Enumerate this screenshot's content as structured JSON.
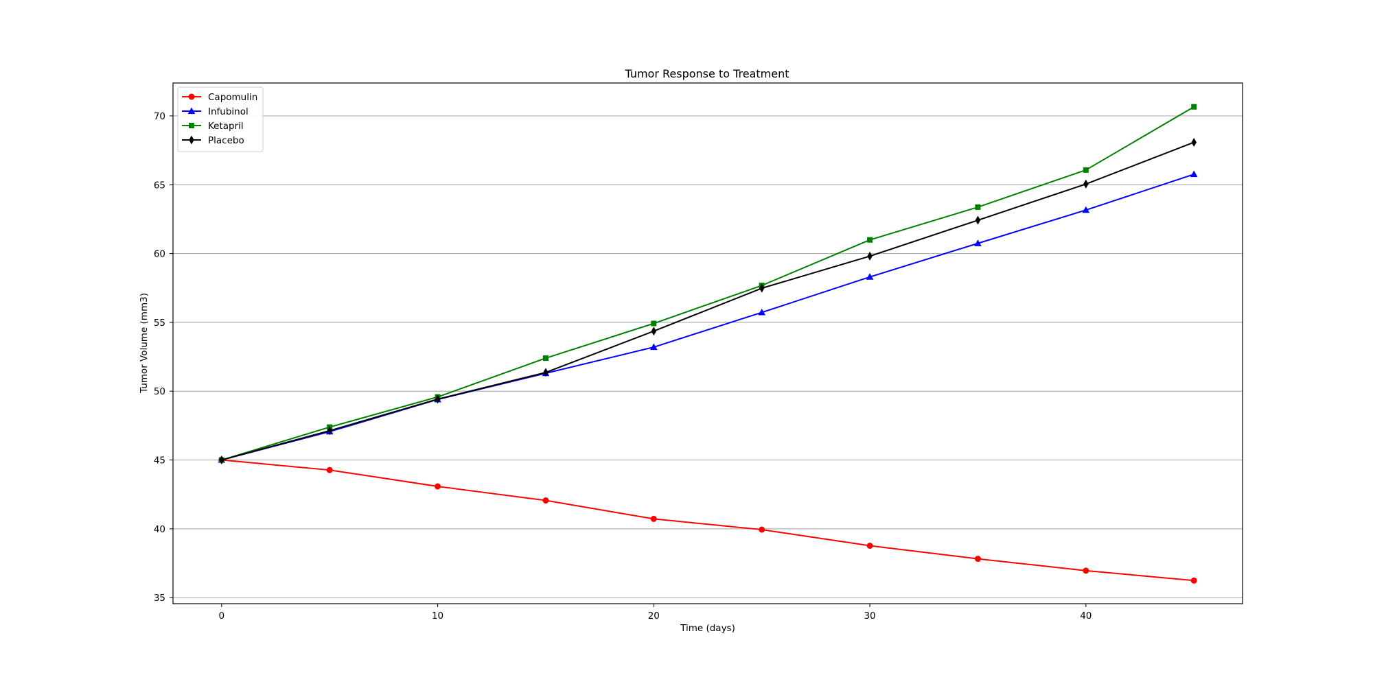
{
  "chart_data": {
    "type": "line",
    "title": "Tumor Response to Treatment",
    "xlabel": "Time (days)",
    "ylabel": "Tumor Volume (mm3)",
    "xlim": [
      -2.25,
      47.25
    ],
    "ylim": [
      34.56,
      72.39
    ],
    "xticks": [
      0,
      10,
      20,
      30,
      40
    ],
    "yticks": [
      35,
      40,
      45,
      50,
      55,
      60,
      65,
      70
    ],
    "grid": "horizontal",
    "legend_position": "upper-left",
    "x": [
      0,
      5,
      10,
      15,
      20,
      25,
      30,
      35,
      40,
      45
    ],
    "series": [
      {
        "name": "Capomulin",
        "color": "#ff0000",
        "marker": "circle",
        "values": [
          45.0,
          44.27,
          43.08,
          42.06,
          40.72,
          39.94,
          38.77,
          37.82,
          36.96,
          36.24
        ]
      },
      {
        "name": "Infubinol",
        "color": "#0000ff",
        "marker": "triangle",
        "values": [
          45.0,
          47.06,
          49.4,
          51.3,
          53.2,
          55.72,
          58.3,
          60.74,
          63.16,
          65.76
        ]
      },
      {
        "name": "Ketapril",
        "color": "#008000",
        "marker": "square",
        "values": [
          45.0,
          47.39,
          49.58,
          52.4,
          54.92,
          57.68,
          60.99,
          63.37,
          66.07,
          70.66
        ]
      },
      {
        "name": "Placebo",
        "color": "#000000",
        "marker": "thin-diamond",
        "values": [
          45.0,
          47.13,
          49.42,
          51.36,
          54.36,
          57.48,
          59.81,
          62.42,
          65.05,
          68.08
        ]
      }
    ]
  }
}
